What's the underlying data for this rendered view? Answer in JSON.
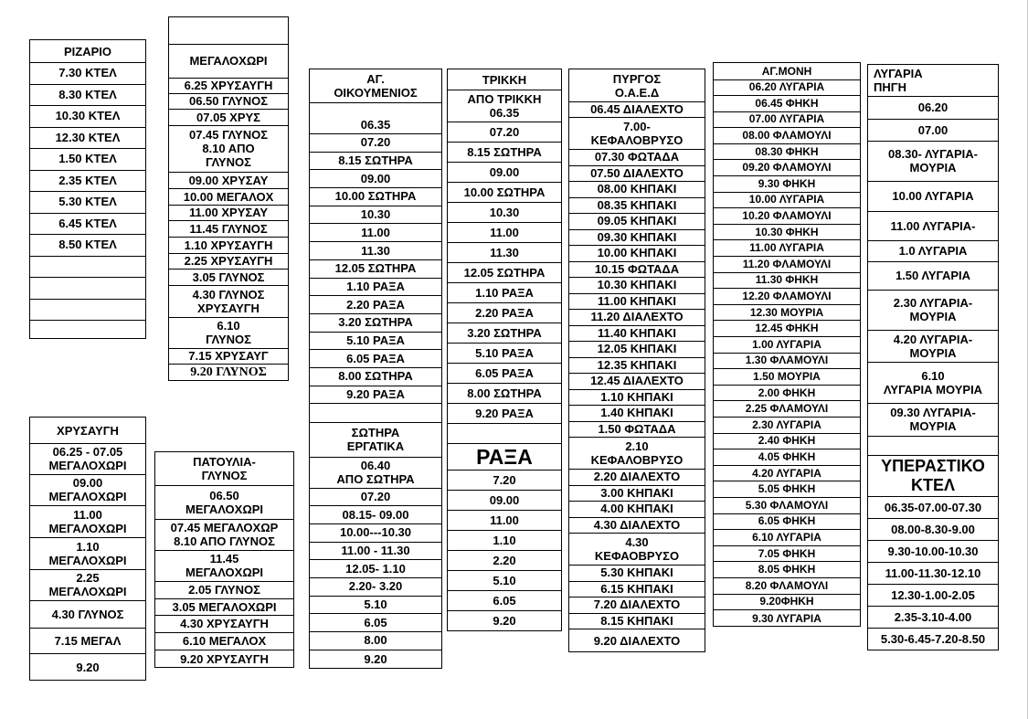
{
  "tables": [
    {
      "id": "rizario",
      "rows": [
        "ΡΙΖΑΡΙΟ",
        "7.30  ΚΤΕΛ",
        "8.30  ΚΤΕΛ",
        "10.30 ΚΤΕΛ",
        "12.30  ΚΤΕΛ",
        "1.50  ΚΤΕΛ",
        "2.35 ΚΤΕΛ",
        "5.30  ΚΤΕΛ",
        "6.45  ΚΤΕΛ",
        "8.50  ΚΤΕΛ",
        "",
        "",
        "",
        ""
      ]
    },
    {
      "id": "megalochori",
      "rows": [
        "",
        "ΜΕΓΑΛΟΧΩΡΙ",
        "6.25 ΧΡΥΣΑΥΓΗ",
        "06.50 ΓΛΥΝΟΣ",
        "07.05 ΧΡΥΣ",
        "07.45 ΓΛΥΝΟΣ\n8.10 ΑΠΟ\nΓΛΥΝΟΣ",
        "09.00 ΧΡΥΣΑΥ",
        "10.00 ΜΕΓΑΛΟΧ",
        "11.00  ΧΡΥΣΑΥ",
        "11.45  ΓΛΥΝΟΣ",
        "1.10 ΧΡΥΣΑΥΓΗ",
        "2.25 ΧΡΥΣΑΥΓΗ",
        "3.05 ΓΛΥΝΟΣ",
        "4.30 ΓΛΥΝΟΣ\nΧΡΥΣΑΥΓΗ",
        "6.10\nΓΛΥΝΟΣ",
        "7.15  ΧΡΥΣΑΥΓ",
        "9.20 ΓΛΥΝΟΣ"
      ]
    },
    {
      "id": "ag-oikoumenios",
      "rows": [
        "ΑΓ.\nΟΙΚΟΥΜΕΝΙΟΣ",
        "\n06.35",
        "07.20",
        "8.15 ΣΩΤΗΡΑ",
        "09.00",
        "10.00 ΣΩΤΗΡΑ",
        "10.30",
        "11.00",
        "11.30",
        "12.05 ΣΩΤΗΡΑ",
        "1.10 ΡΑΞΑ",
        "2.20  ΡΑΞΑ",
        "3.20 ΣΩΤΗΡΑ",
        "5.10  ΡΑΞΑ",
        "6.05  ΡΑΞΑ",
        "8.00  ΣΩΤΗΡΑ",
        "9.20  ΡΑΞΑ",
        "",
        "ΣΩΤΗΡΑ\nΕΡΓΑΤΙΚΑ",
        "06.40\nΑΠΟ  ΣΩΤΗΡΑ",
        "07.20",
        "08.15-   09.00",
        "10.00---10.30",
        "11.00  - 11.30",
        "12.05- 1.10",
        "2.20-  3.20",
        "5.10",
        "6.05",
        "8.00",
        "9.20"
      ]
    },
    {
      "id": "trikki",
      "rows": [
        "ΤΡΙΚΚΗ",
        "ΑΠΟ ΤΡΙΚΚΗ\n06.35",
        "07.20",
        "8.15 ΣΩΤΗΡΑ",
        "09.00",
        "10.00 ΣΩΤΗΡΑ",
        "10.30",
        "11.00",
        "11.30",
        "12.05 ΣΩΤΗΡΑ",
        "1.10 ΡΑΞΑ",
        "2.20  ΡΑΞΑ",
        "3.20 ΣΩΤΗΡΑ",
        "5.10  ΡΑΞΑ",
        "6.05  ΡΑΞΑ",
        "8.00  ΣΩΤΗΡΑ",
        "9.20  ΡΑΞΑ",
        "",
        "ΡΑΞΑ",
        "7.20",
        "09.00",
        "11.00",
        "1.10",
        "2.20",
        "5.10",
        "6.05",
        "9.20"
      ]
    },
    {
      "id": "pyrgos",
      "rows": [
        "ΠΥΡΓΟΣ\nΟ.Α.Ε.Δ",
        "06.45  ΔΙΑΛΕΧΤΟ",
        "7.00-\nΚΕΦΑΛΟΒΡΥΣΟ",
        "07.30 ΦΩΤΑΔΑ",
        "07.50  ΔΙΑΛΕΧΤΟ",
        "08.00  ΚΗΠΑΚΙ",
        "08.35  ΚΗΠΑΚΙ",
        "09.05 ΚΗΠΑΚΙ",
        "09.30  ΚΗΠΑΚΙ",
        "10.00  ΚΗΠΑΚΙ",
        "10.15  ΦΩΤΑΔΑ",
        "10.30  ΚΗΠΑΚΙ",
        "11.00  ΚΗΠΑΚΙ",
        "11.20  ΔΙΑΛΕΧΤΟ",
        "11.40  ΚΗΠΑΚΙ",
        "12.05  ΚΗΠΑΚΙ",
        "12.35  ΚΗΠΑΚΙ",
        "12.45  ΔΙΑΛΕΧΤΟ",
        "1.10  ΚΗΠΑΚΙ",
        "1.40  ΚΗΠΑΚΙ",
        "1.50 ΦΩΤΑΔΑ",
        "2.10\nΚΕΦΑΛΟΒΡΥΣΟ",
        "2.20  ΔΙΑΛΕΧΤΟ",
        "3.00    ΚΗΠΑΚΙ",
        "4.00    ΚΗΠΑΚΙ",
        "4.30  ΔΙΑΛΕΧΤΟ",
        "4.30\nΚΕΦΑΟΒΡΥΣΟ",
        "5.30  ΚΗΠΑΚΙ",
        "6.15 ΚΗΠΑΚΙ",
        "7.20 ΔΙΑΛΕΧΤΟ",
        "8.15 ΚΗΠΑΚΙ",
        "9.20 ΔΙΑΛΕΧΤΟ"
      ]
    },
    {
      "id": "ag-moni",
      "rows": [
        "ΑΓ.ΜΟΝΗ",
        "06.20 ΛΥΓΑΡΙΑ",
        "06.45  ΦΗΚΗ",
        "07.00 ΛΥΓΑΡΙΑ",
        "08.00  ΦΛΑΜΟΥΛΙ",
        "08.30  ΦΗΚΗ",
        "09.20  ΦΛΑΜΟΥΛΙ",
        "9.30 ΦΗΚΗ",
        "10.00 ΛΥΓΑΡΙΑ",
        "10.20 ΦΛΑΜΟΥΛΙ",
        "10.30  ΦΗΚΗ",
        "11.00  ΛΥΓΑΡΙΑ",
        "11.20  ΦΛΑΜΟΥΛΙ",
        "11.30  ΦΗΚΗ",
        "12.20 ΦΛΑΜΟΥΛΙ",
        "12.30 ΜΟΥΡΙΑ",
        "12.45 ΦΗΚΗ",
        "1.00 ΛΥΓΑΡΙΑ",
        "1.30  ΦΛΑΜΟΥΛΙ",
        "1.50 ΜΟΥΡΙΑ",
        "2.00 ΦΗΚΗ",
        "2.25 ΦΛΑΜΟΥΛΙ",
        "2.30 ΛΥΓΑΡΙΑ",
        "2.40 ΦΗΚΗ",
        "4.05 ΦΗΚΗ",
        "4.20 ΛΥΓΑΡΙΑ",
        "5.05  ΦΗΚΗ",
        "5.30 ΦΛΑΜΟΥΛΙ",
        "6.05 ΦΗΚΗ",
        "6.10 ΛΥΓΑΡΙΑ",
        "7.05 ΦΗΚΗ",
        "8.05 ΦΗΚΗ",
        "8.20  ΦΛΑΜΟΥΛΙ",
        "9.20ΦΗΚΗ",
        "9.30  ΛΥΓΑΡΙΑ"
      ]
    },
    {
      "id": "lygaria-pigi",
      "rows": [
        "ΛΥΓΑΡΙΑ\nΠΗΓΗ",
        "06.20",
        "07.00",
        "08.30- ΛΥΓΑΡΙΑ-\nΜΟΥΡΙΑ",
        "10.00 ΛΥΓΑΡΙΑ",
        "11.00 ΛΥΓΑΡΙΑ-",
        "1.0 ΛΥΓΑΡΙΑ",
        "1.50 ΛΥΓΑΡΙΑ",
        "2.30 ΛΥΓΑΡΙΑ-\nΜΟΥΡΙΑ",
        "4.20  ΛΥΓΑΡΙΑ-\nΜΟΥΡΙΑ",
        "6.10\nΛΥΓΑΡΙΑ ΜΟΥΡΙΑ",
        "09.30 ΛΥΓΑΡΙΑ-\nΜΟΥΡΙΑ",
        "",
        "ΥΠΕΡΑΣΤΙΚΟ\nΚΤΕΛ",
        "06.35-07.00-07.30",
        "08.00-8.30-9.00",
        "9.30-10.00-10.30",
        "11.00-11.30-12.10",
        "12.30-1.00-2.05",
        "2.35-3.10-4.00",
        "5.30-6.45-7.20-8.50"
      ]
    },
    {
      "id": "chrysavgi",
      "rows": [
        "ΧΡΥΣΑΥΓΗ",
        "06.25 - 07.05\nΜΕΓΑΛΟΧΩΡΙ",
        "09.00\nΜΕΓΑΛΟΧΩΡΙ",
        "11.00\nΜΕΓΑΛΟΧΩΡΙ",
        "1.10\nΜΕΓΑΛΟΧΩΡΙ",
        "2.25\nΜΕΓΑΛΟΧΩΡΙ",
        "4.30 ΓΛΥΝΟΣ",
        "7.15 ΜΕΓΑΛ",
        "9.20"
      ]
    },
    {
      "id": "patoulia-glynos",
      "rows": [
        "ΠΑΤΟΥΛΙΑ-\nΓΛΥΝΟΣ",
        "06.50\nΜΕΓΑΛΟΧΩΡΙ",
        "07.45 ΜΕΓΑΛΟΧΩΡ\n8.10 ΑΠΟ ΓΛΥΝΟΣ",
        "11.45\nΜΕΓΑΛΟΧΩΡΙ",
        "2.05 ΓΛΥΝΟΣ",
        "3.05  ΜΕΓΑΛΟΧΩΡΙ",
        "4.30 ΧΡΥΣΑΥΓΗ",
        "6.10 ΜΕΓΑΛΟΧ",
        "9.20 ΧΡΥΣΑΥΓΗ"
      ]
    }
  ]
}
